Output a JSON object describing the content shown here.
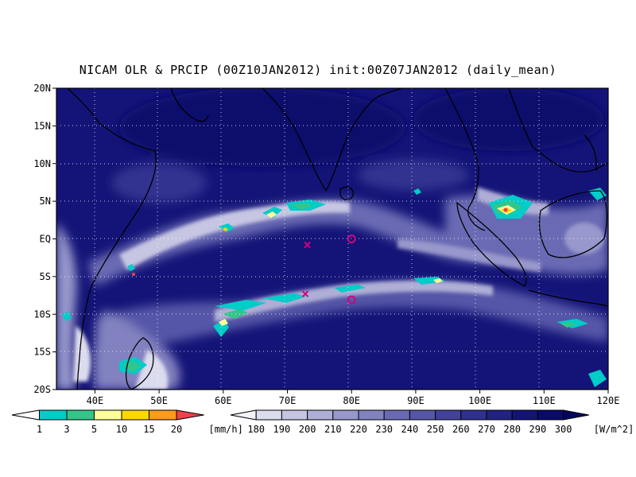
{
  "title": "NICAM OLR & PRCIP (00Z10JAN2012) init:00Z07JAN2012 (daily_mean)",
  "map": {
    "lat_labels": [
      "20N",
      "15N",
      "10N",
      "5N",
      "EQ",
      "5S",
      "10S",
      "15S",
      "20S"
    ],
    "lon_labels": [
      "40E",
      "50E",
      "60E",
      "70E",
      "80E",
      "90E",
      "100E",
      "110E",
      "120E"
    ],
    "lon_range": [
      34,
      120
    ],
    "lat_range": [
      -20,
      20
    ],
    "gridlines": "dotted",
    "markers": [
      {
        "type": "x",
        "lon": 73.1,
        "lat": -0.8,
        "color": "#d6007c"
      },
      {
        "type": "circle",
        "lon": 80,
        "lat": 0,
        "color": "#d6007c"
      },
      {
        "type": "x",
        "lon": 72.8,
        "lat": -7.3,
        "color": "#d6007c"
      },
      {
        "type": "circle",
        "lon": 80,
        "lat": -8.1,
        "color": "#d6007c"
      }
    ]
  },
  "precip_colorbar": {
    "unit": "[mm/h]",
    "labels": [
      "1",
      "3",
      "5",
      "10",
      "15",
      "20"
    ],
    "colors": [
      "#00ccc8",
      "#33c68a",
      "#ffff99",
      "#ffd700",
      "#ff9a1a",
      "#f0404a"
    ]
  },
  "olr_colorbar": {
    "unit": "[W/m^2]",
    "labels": [
      "180",
      "190",
      "200",
      "210",
      "220",
      "230",
      "240",
      "250",
      "260",
      "270",
      "280",
      "290",
      "300"
    ],
    "colors": [
      "#f2f2fa",
      "#dcdcef",
      "#c6c6e3",
      "#aeaed6",
      "#9898cc",
      "#8282c0",
      "#6a6ab4",
      "#5656a8",
      "#42429c",
      "#303090",
      "#222284",
      "#141478",
      "#0a0a6c",
      "#05055e"
    ]
  }
}
